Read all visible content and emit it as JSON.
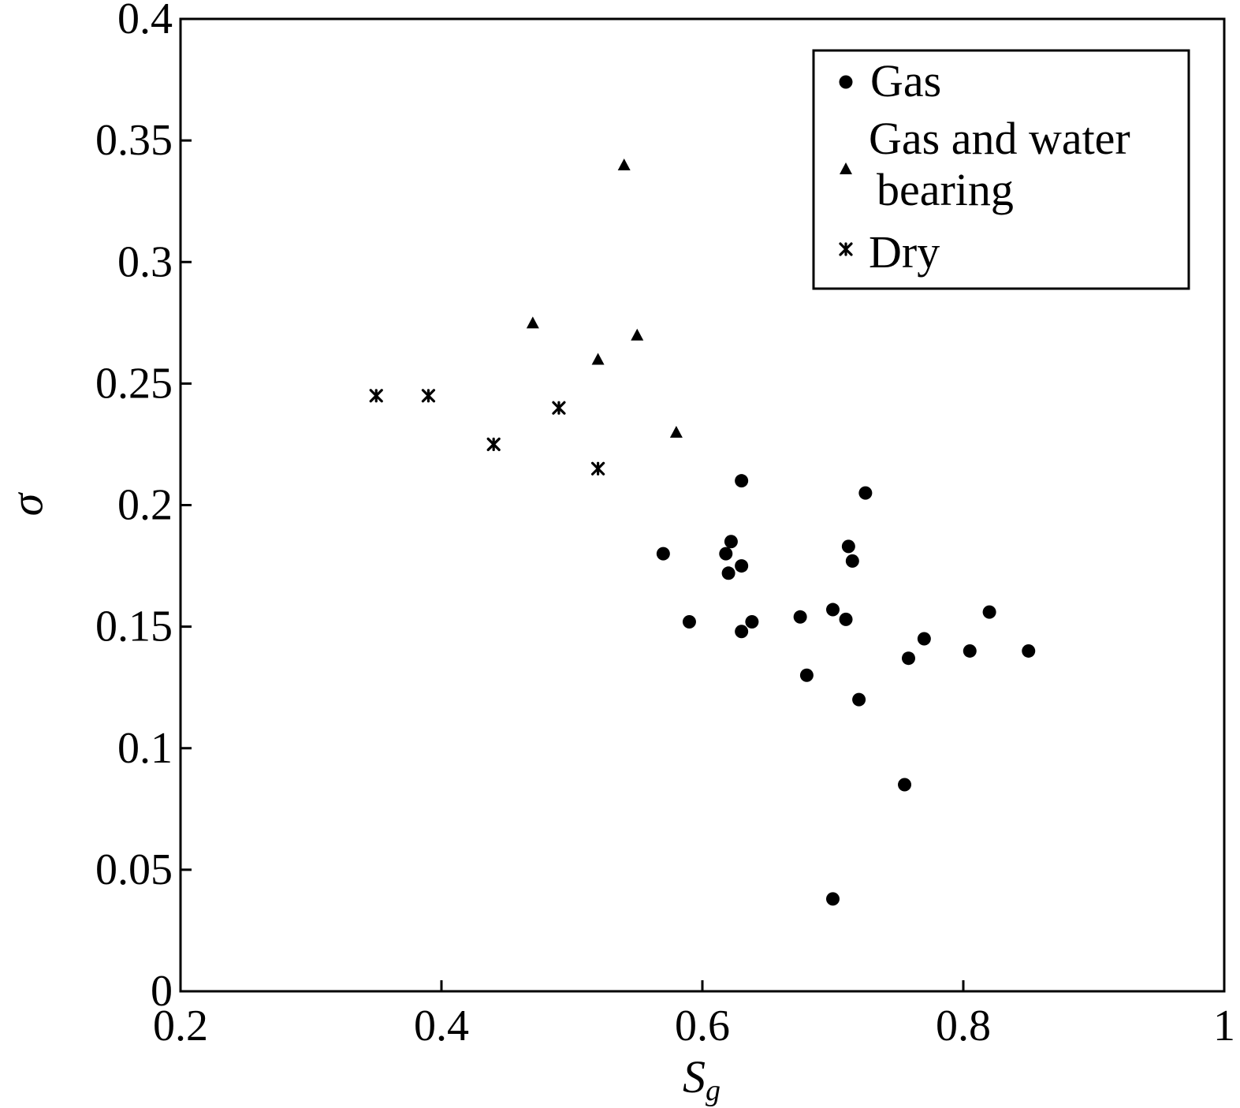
{
  "chart_data": {
    "type": "scatter",
    "title": "",
    "xlabel": "S",
    "xlabel_sub": "g",
    "ylabel": "σ",
    "xlim": [
      0.2,
      1.0
    ],
    "ylim": [
      0,
      0.4
    ],
    "xticks": [
      {
        "value": 0.2,
        "label": "0.2"
      },
      {
        "value": 0.4,
        "label": "0.4"
      },
      {
        "value": 0.6,
        "label": "0.6"
      },
      {
        "value": 0.8,
        "label": "0.8"
      },
      {
        "value": 1.0,
        "label": "1"
      }
    ],
    "yticks": [
      {
        "value": 0,
        "label": "0"
      },
      {
        "value": 0.05,
        "label": "0.05"
      },
      {
        "value": 0.1,
        "label": "0.1"
      },
      {
        "value": 0.15,
        "label": "0.15"
      },
      {
        "value": 0.2,
        "label": "0.2"
      },
      {
        "value": 0.25,
        "label": "0.25"
      },
      {
        "value": 0.3,
        "label": "0.3"
      },
      {
        "value": 0.35,
        "label": "0.35"
      },
      {
        "value": 0.4,
        "label": "0.4"
      }
    ],
    "grid": false,
    "legend_position": "top-right",
    "legend": [
      {
        "marker": "circle",
        "lines": [
          "Gas"
        ]
      },
      {
        "marker": "triangle",
        "lines": [
          "Gas and water",
          "bearing"
        ]
      },
      {
        "marker": "star",
        "lines": [
          "Dry"
        ]
      }
    ],
    "series": [
      {
        "name": "Gas",
        "marker": "circle",
        "points": [
          {
            "x": 0.57,
            "y": 0.18
          },
          {
            "x": 0.59,
            "y": 0.152
          },
          {
            "x": 0.618,
            "y": 0.18
          },
          {
            "x": 0.62,
            "y": 0.172
          },
          {
            "x": 0.622,
            "y": 0.185
          },
          {
            "x": 0.63,
            "y": 0.21
          },
          {
            "x": 0.63,
            "y": 0.175
          },
          {
            "x": 0.63,
            "y": 0.148
          },
          {
            "x": 0.638,
            "y": 0.152
          },
          {
            "x": 0.675,
            "y": 0.154
          },
          {
            "x": 0.68,
            "y": 0.13
          },
          {
            "x": 0.7,
            "y": 0.157
          },
          {
            "x": 0.7,
            "y": 0.038
          },
          {
            "x": 0.71,
            "y": 0.153
          },
          {
            "x": 0.712,
            "y": 0.183
          },
          {
            "x": 0.715,
            "y": 0.177
          },
          {
            "x": 0.72,
            "y": 0.12
          },
          {
            "x": 0.725,
            "y": 0.205
          },
          {
            "x": 0.755,
            "y": 0.085
          },
          {
            "x": 0.758,
            "y": 0.137
          },
          {
            "x": 0.77,
            "y": 0.145
          },
          {
            "x": 0.805,
            "y": 0.14
          },
          {
            "x": 0.82,
            "y": 0.156
          },
          {
            "x": 0.85,
            "y": 0.14
          }
        ]
      },
      {
        "name": "Gas and water bearing",
        "marker": "triangle",
        "points": [
          {
            "x": 0.47,
            "y": 0.275
          },
          {
            "x": 0.52,
            "y": 0.26
          },
          {
            "x": 0.54,
            "y": 0.34
          },
          {
            "x": 0.55,
            "y": 0.27
          },
          {
            "x": 0.58,
            "y": 0.23
          }
        ]
      },
      {
        "name": "Dry",
        "marker": "star",
        "points": [
          {
            "x": 0.35,
            "y": 0.245
          },
          {
            "x": 0.39,
            "y": 0.245
          },
          {
            "x": 0.44,
            "y": 0.225
          },
          {
            "x": 0.49,
            "y": 0.24
          },
          {
            "x": 0.52,
            "y": 0.215
          }
        ]
      }
    ]
  }
}
